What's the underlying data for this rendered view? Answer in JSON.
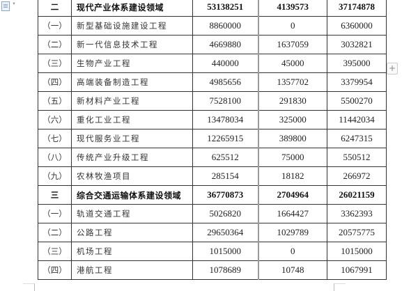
{
  "rows": [
    {
      "idx": "二",
      "name": "现代产业体系建设领域",
      "v1": "53138251",
      "v2": "4139573",
      "v3": "37174878",
      "bold": true
    },
    {
      "idx": "（一）",
      "name": "新型基础设施建设工程",
      "v1": "8860000",
      "v2": "0",
      "v3": "6360000"
    },
    {
      "idx": "（二）",
      "name": "新一代信息技术工程",
      "v1": "4669880",
      "v2": "1637059",
      "v3": "3032821"
    },
    {
      "idx": "（三）",
      "name": "生物产业工程",
      "v1": "440000",
      "v2": "45000",
      "v3": "395000"
    },
    {
      "idx": "（四）",
      "name": "高端装备制造工程",
      "v1": "4985656",
      "v2": "1357702",
      "v3": "3379954"
    },
    {
      "idx": "（五）",
      "name": "新材料产业工程",
      "v1": "7528100",
      "v2": "291830",
      "v3": "5500270"
    },
    {
      "idx": "（六）",
      "name": "重化工业工程",
      "v1": "13478034",
      "v2": "325000",
      "v3": "11442034"
    },
    {
      "idx": "（七）",
      "name": "现代服务业工程",
      "v1": "12265915",
      "v2": "389800",
      "v3": "6247315"
    },
    {
      "idx": "（八）",
      "name": "传统产业升级工程",
      "v1": "625512",
      "v2": "75000",
      "v3": "550512"
    },
    {
      "idx": "（九）",
      "name": "农林牧渔项目",
      "v1": "285154",
      "v2": "18182",
      "v3": "266972"
    },
    {
      "idx": "三",
      "name": "综合交通运输体系建设领域",
      "v1": "36770873",
      "v2": "2704964",
      "v3": "26021159",
      "bold": true
    },
    {
      "idx": "（一）",
      "name": "轨道交通工程",
      "v1": "5026820",
      "v2": "1664427",
      "v3": "3362393"
    },
    {
      "idx": "（二）",
      "name": "公路工程",
      "v1": "29650364",
      "v2": "1029789",
      "v3": "20575775"
    },
    {
      "idx": "（三）",
      "name": "机场工程",
      "v1": "1015000",
      "v2": "0",
      "v3": "1015000"
    },
    {
      "idx": "（四）",
      "name": "港航工程",
      "v1": "1078689",
      "v2": "10748",
      "v3": "1067991"
    }
  ],
  "add_row_button": "+",
  "icons": {
    "doc": "document-icon",
    "add": "plus-icon"
  }
}
